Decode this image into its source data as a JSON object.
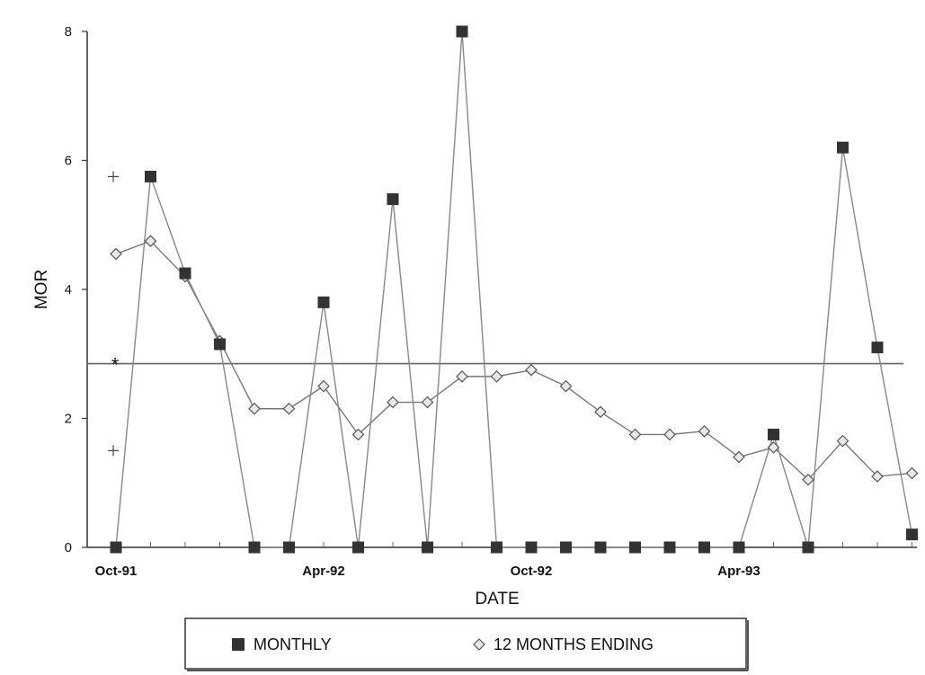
{
  "chart_data": {
    "type": "line",
    "xlabel": "DATE",
    "ylabel": "MOR",
    "ylim": [
      0,
      8
    ],
    "yticks": [
      0,
      2,
      4,
      6,
      8
    ],
    "x_tick_labels": [
      {
        "index": 0,
        "label": "Oct-91"
      },
      {
        "index": 6,
        "label": "Apr-92"
      },
      {
        "index": 12,
        "label": "Oct-92"
      },
      {
        "index": 18,
        "label": "Apr-93"
      }
    ],
    "categories": [
      "Oct-91",
      "Nov-91",
      "Dec-91",
      "Jan-92",
      "Feb-92",
      "Mar-92",
      "Apr-92",
      "May-92",
      "Jun-92",
      "Jul-92",
      "Aug-92",
      "Sep-92",
      "Oct-92",
      "Nov-92",
      "Dec-92",
      "Jan-93",
      "Feb-93",
      "Mar-93",
      "Apr-93",
      "May-93",
      "Jun-93",
      "Jul-93",
      "Aug-93",
      "Sep-93"
    ],
    "series": [
      {
        "name": "MONTHLY",
        "marker": "square",
        "color": "#333333",
        "values": [
          0.0,
          5.75,
          4.25,
          3.15,
          0.0,
          0.0,
          3.8,
          0.0,
          5.4,
          0.0,
          8.0,
          0.0,
          0.0,
          0.0,
          0.0,
          0.0,
          0.0,
          0.0,
          0.0,
          1.75,
          0.0,
          6.2,
          3.1,
          0.2
        ]
      },
      {
        "name": "12 MONTHS ENDING",
        "marker": "diamond",
        "color": "#555555",
        "values": [
          4.55,
          4.75,
          4.2,
          3.2,
          2.15,
          2.15,
          2.5,
          1.75,
          2.25,
          2.25,
          2.65,
          2.65,
          2.75,
          2.5,
          2.1,
          1.75,
          1.75,
          1.8,
          1.4,
          1.55,
          1.05,
          1.65,
          1.1,
          1.15
        ]
      }
    ],
    "reference_line": {
      "value": 2.85,
      "marker": "*"
    },
    "control_marks": [
      5.75,
      1.5
    ],
    "legend_position": "bottom"
  }
}
